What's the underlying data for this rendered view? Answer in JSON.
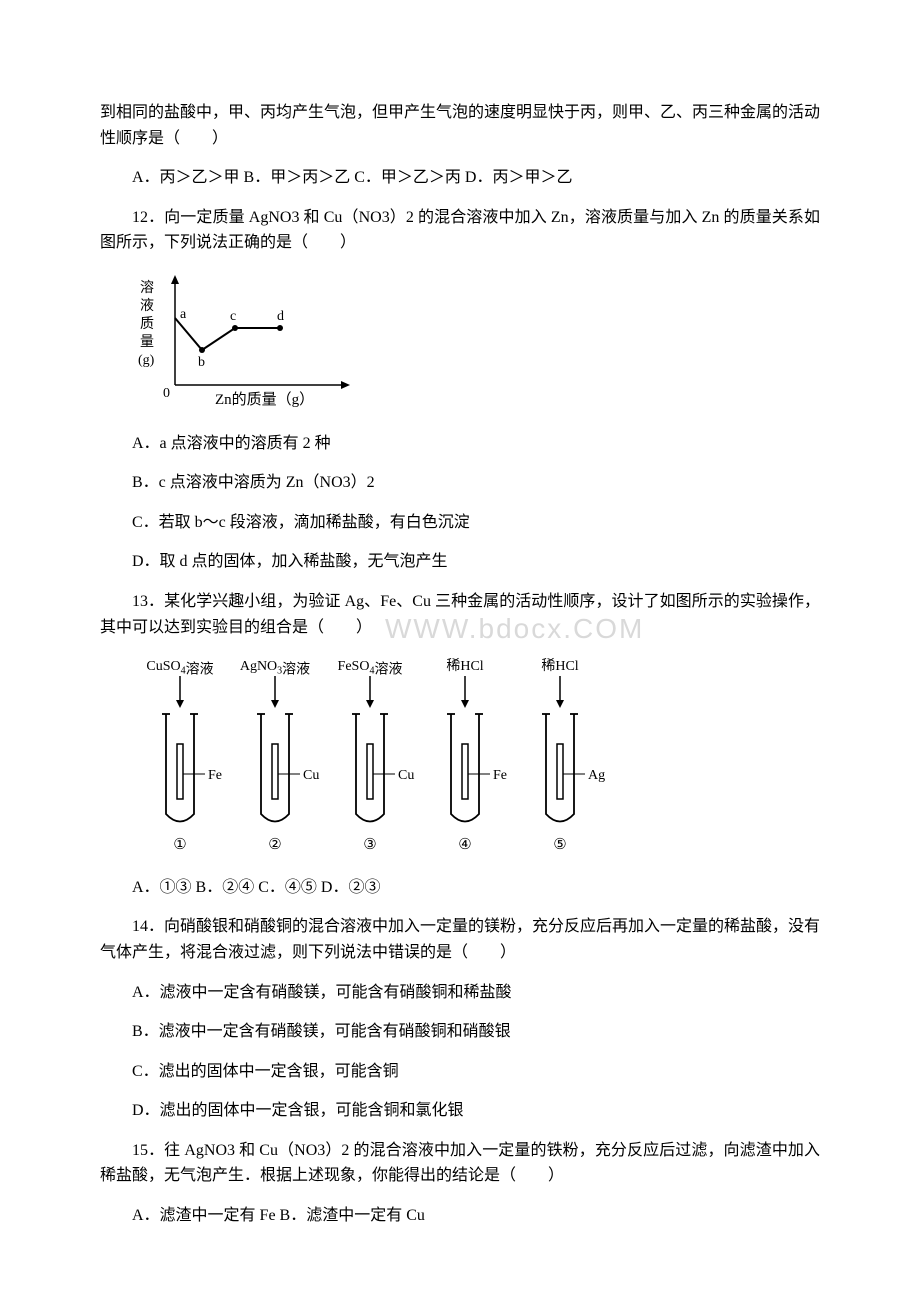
{
  "p1": "到相同的盐酸中，甲、丙均产生气泡，但甲产生气泡的速度明显快于丙，则甲、乙、丙三种金属的活动性顺序是（　　）",
  "p1_choices": "A．丙＞乙＞甲 B．甲＞丙＞乙 C．甲＞乙＞丙 D．丙＞甲＞乙",
  "q12": "12．向一定质量 AgNO3 和 Cu（NO3）2 的混合溶液中加入 Zn，溶液质量与加入 Zn 的质量关系如图所示，下列说法正确的是（　　）",
  "fig12": {
    "y_label_chars": [
      "溶",
      "液",
      "质",
      "量",
      "(g)"
    ],
    "x_label": "Zn的质量（g）",
    "points": [
      "a",
      "b",
      "c",
      "d"
    ],
    "y_axis_color": "#000000",
    "x_axis_color": "#000000"
  },
  "q12_a": "A．a 点溶液中的溶质有 2 种",
  "q12_b": "B．c 点溶液中溶质为 Zn（NO3）2",
  "q12_c": "C．若取 b～c 段溶液，滴加稀盐酸，有白色沉淀",
  "q12_d": "D．取 d 点的固体，加入稀盐酸，无气泡产生",
  "q13": "13．某化学兴趣小组，为验证 Ag、Fe、Cu 三种金属的活动性顺序，设计了如图所示的实验操作，其中可以达到实验目的组合是（　　）",
  "fig13": {
    "tubes": [
      {
        "top": "CuSO4溶液",
        "label": "Fe",
        "num": "①"
      },
      {
        "top": "AgNO3溶液",
        "label": "Cu",
        "num": "②"
      },
      {
        "top": "FeSO4溶液",
        "label": "Cu",
        "num": "③"
      },
      {
        "top": "稀HCl",
        "label": "Fe",
        "num": "④"
      },
      {
        "top": "稀HCl",
        "label": "Ag",
        "num": "⑤"
      }
    ],
    "top_font_size": 14,
    "label_font_size": 14
  },
  "q13_choices": "A．①③ B．②④ C．④⑤ D．②③",
  "q14": "14．向硝酸银和硝酸铜的混合溶液中加入一定量的镁粉，充分反应后再加入一定量的稀盐酸，没有气体产生，将混合液过滤，则下列说法中错误的是（　　）",
  "q14_a": "A．滤液中一定含有硝酸镁，可能含有硝酸铜和稀盐酸",
  "q14_b": "B．滤液中一定含有硝酸镁，可能含有硝酸铜和硝酸银",
  "q14_c": "C．滤出的固体中一定含银，可能含铜",
  "q14_d": "D．滤出的固体中一定含银，可能含铜和氯化银",
  "q15": "15．往 AgNO3 和 Cu（NO3）2 的混合溶液中加入一定量的铁粉，充分反应后过滤，向滤渣中加入稀盐酸，无气泡产生．根据上述现象，你能得出的结论是（　　）",
  "q15_choices": "A．滤渣中一定有 Fe B．滤渣中一定有 Cu",
  "watermark": "WWW.bdocx.COM"
}
